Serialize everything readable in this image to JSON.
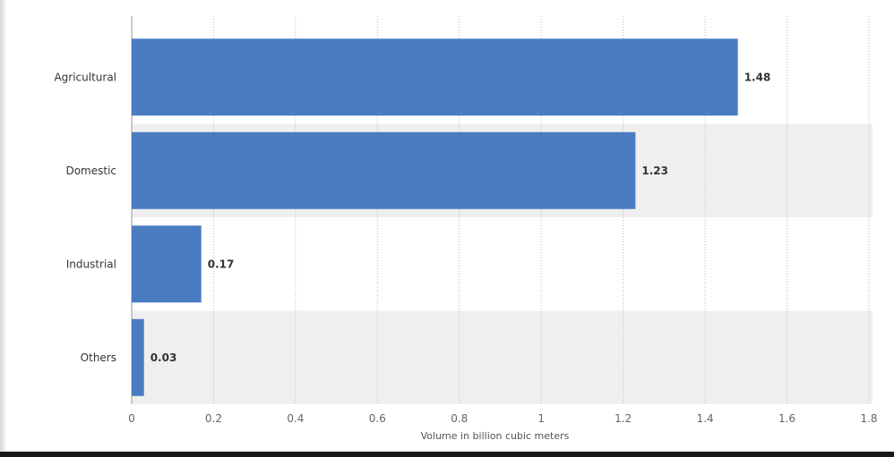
{
  "chart_data": {
    "type": "bar",
    "orientation": "horizontal",
    "categories": [
      "Agricultural",
      "Domestic",
      "Industrial",
      "Others"
    ],
    "values": [
      1.48,
      1.23,
      0.17,
      0.03
    ],
    "value_labels": [
      "1.48",
      "1.23",
      "0.17",
      "0.03"
    ],
    "xlabel": "Volume in billion cubic meters",
    "ylabel": "",
    "xlim": [
      0,
      1.8
    ],
    "xticks": [
      0,
      0.2,
      0.4,
      0.6,
      0.8,
      1,
      1.2,
      1.4,
      1.6,
      1.8
    ],
    "xtick_labels": [
      "0",
      "0.2",
      "0.4",
      "0.6",
      "0.8",
      "1",
      "1.2",
      "1.4",
      "1.6",
      "1.8"
    ],
    "grid": true,
    "colors": {
      "bar": "#4a7cc1",
      "band": "#efefef",
      "grid": "#bdbdbd"
    }
  }
}
